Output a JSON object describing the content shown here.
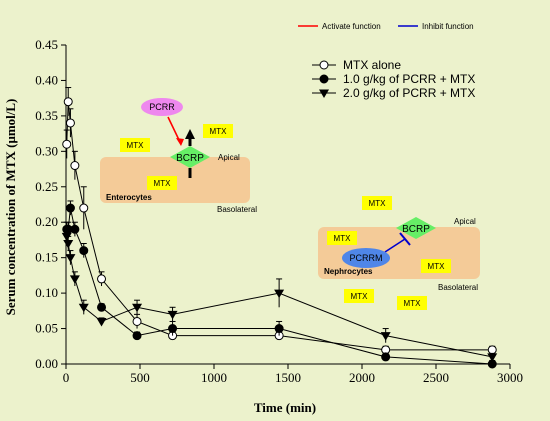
{
  "chart_data": {
    "type": "line",
    "xlabel": "Time (min)",
    "ylabel": "Serum concentration of MTX (μmol/L)",
    "xlim": [
      0,
      3000
    ],
    "ylim": [
      0,
      0.45
    ],
    "xticks": [
      "0",
      "500",
      "1000",
      "1500",
      "2000",
      "2500",
      "3000"
    ],
    "yticks": [
      "0.00",
      "0.05",
      "0.10",
      "0.15",
      "0.20",
      "0.25",
      "0.30",
      "0.35",
      "0.40",
      "0.45"
    ],
    "legend_position": "top-right",
    "series": [
      {
        "name": "MTX alone",
        "marker": "open-circle",
        "x": [
          5,
          15,
          30,
          60,
          120,
          240,
          480,
          720,
          1440,
          2160,
          2880
        ],
        "y": [
          0.31,
          0.37,
          0.34,
          0.28,
          0.22,
          0.12,
          0.06,
          0.04,
          0.04,
          0.02,
          0.02
        ],
        "err": [
          0.02,
          0.02,
          0.02,
          0.02,
          0.03,
          0.01,
          0.01,
          0.005,
          0.005,
          0.005,
          0.005
        ]
      },
      {
        "name": "1.0 g/kg of PCRR + MTX",
        "marker": "filled-circle",
        "x": [
          5,
          15,
          30,
          60,
          120,
          240,
          480,
          720,
          1440,
          2160,
          2880
        ],
        "y": [
          0.19,
          0.19,
          0.22,
          0.19,
          0.16,
          0.08,
          0.04,
          0.05,
          0.05,
          0.01,
          0.0
        ],
        "err": [
          0.01,
          0.01,
          0.01,
          0.01,
          0.01,
          0.005,
          0.005,
          0.01,
          0.01,
          0.005,
          0.005
        ]
      },
      {
        "name": "2.0 g/kg of PCRR + MTX",
        "marker": "filled-triangle-down",
        "x": [
          5,
          15,
          30,
          60,
          120,
          240,
          480,
          720,
          1440,
          2160,
          2880
        ],
        "y": [
          0.18,
          0.17,
          0.15,
          0.12,
          0.08,
          0.06,
          0.08,
          0.07,
          0.1,
          0.04,
          0.01
        ],
        "err": [
          0.01,
          0.01,
          0.01,
          0.01,
          0.01,
          0.005,
          0.01,
          0.01,
          0.02,
          0.01,
          0.005
        ]
      }
    ]
  },
  "function_legend": {
    "activate": {
      "label": "Activate function",
      "color": "#ff0000"
    },
    "inhibit": {
      "label": "Inhibit function",
      "color": "#0000cc"
    }
  },
  "schematic": {
    "enterocyte": {
      "cell_label": "Enterocytes",
      "apical": "Apical",
      "basolateral": "Basolateral",
      "transporter": "BCRP",
      "herb": "PCRR",
      "mtx_labels": [
        "MTX",
        "MTX",
        "MTX"
      ]
    },
    "nephrocyte": {
      "cell_label": "Nephrocytes",
      "apical": "Apical",
      "basolateral": "Basolateral",
      "transporter": "BCRP",
      "herb": "PCRRM",
      "mtx_labels": [
        "MTX",
        "MTX",
        "MTX",
        "MTX",
        "MTX"
      ]
    }
  },
  "colors": {
    "background": "#ecf2cc",
    "cell_fill": "#f6c48e",
    "transporter_fill": "#66ee66",
    "mtx_fill": "#ffff00",
    "herb_fill": "#ee88ee",
    "herb2_fill": "#4f86e8"
  }
}
